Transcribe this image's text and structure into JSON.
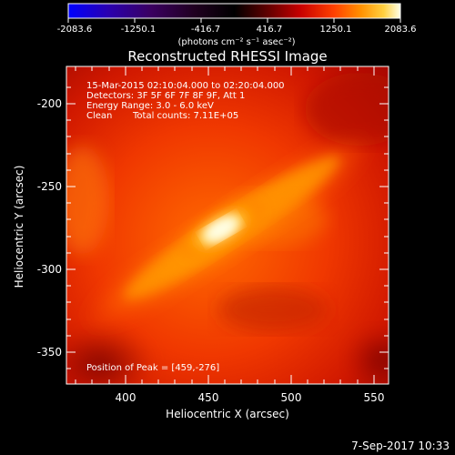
{
  "colorbar": {
    "ticks": [
      "-2083.6",
      "-1250.1",
      "-416.7",
      "416.7",
      "1250.1",
      "2083.6"
    ],
    "unit_label": "(photons cm⁻² s⁻¹ asec⁻²)",
    "range": [
      -2083.6,
      2083.6
    ],
    "stops": [
      "#0000ff",
      "#2a00aa",
      "#3a0060",
      "#200020",
      "#000000",
      "#5a0000",
      "#c00000",
      "#ff3000",
      "#ff8000",
      "#ffc020",
      "#ffffe0"
    ]
  },
  "title": "Reconstructed RHESSI Image",
  "annotations": {
    "line1": "15-Mar-2015 02:10:04.000 to 02:20:04.000",
    "line2": "Detectors: 3F 5F 6F 7F 8F 9F, Att 1",
    "line3": "Energy Range: 3.0 - 6.0 keV",
    "line4_method": "Clean",
    "line4_counts": "Total counts: 7.11E+05",
    "peak": "Position of Peak = [459,-276]"
  },
  "axes": {
    "xlabel": "Heliocentric X (arcsec)",
    "ylabel": "Heliocentric Y (arcsec)",
    "xticks": [
      "400",
      "450",
      "500",
      "550"
    ],
    "yticks": [
      "-200",
      "-250",
      "-300",
      "-350"
    ],
    "x_range": [
      365,
      557
    ],
    "y_range": [
      -372,
      -180
    ]
  },
  "peak_position": {
    "x": 459,
    "y": -276
  },
  "footer_date": "7-Sep-2017 10:33"
}
